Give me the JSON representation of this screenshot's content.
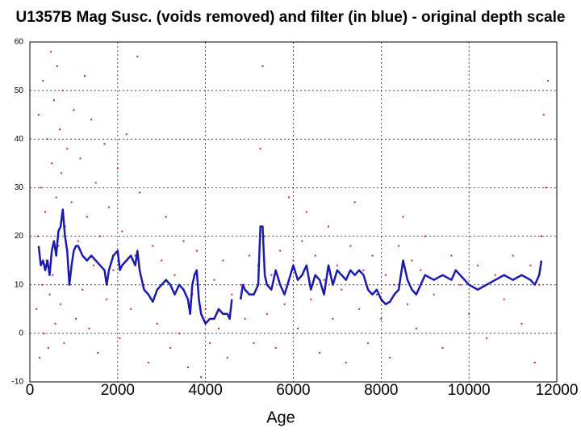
{
  "chart_data": {
    "type": "scatter",
    "title": "U1357B Mag Susc. (voids removed) and filter (in blue) - original depth scale",
    "xlabel": "Age",
    "xlim": [
      0,
      12000
    ],
    "xticks": [
      0,
      2000,
      4000,
      6000,
      8000,
      10000,
      12000
    ],
    "ylim": [
      -10,
      60
    ],
    "yticks": [
      -10,
      0,
      10,
      20,
      30,
      40,
      50,
      60
    ],
    "grid": true,
    "series": [
      {
        "type": "scatter",
        "color": "#cc2222",
        "x": [
          150,
          180,
          200,
          220,
          250,
          280,
          300,
          320,
          350,
          380,
          400,
          420,
          450,
          480,
          500,
          520,
          550,
          580,
          600,
          620,
          650,
          680,
          700,
          720,
          750,
          780,
          800,
          850,
          900,
          950,
          1000,
          1050,
          1100,
          1150,
          1200,
          1250,
          1300,
          1350,
          1400,
          1450,
          1500,
          1550,
          1600,
          1700,
          1750,
          1800,
          1900,
          2000,
          2050,
          2100,
          2200,
          2300,
          2400,
          2450,
          2500,
          2600,
          2700,
          2800,
          2900,
          3000,
          3100,
          3200,
          3300,
          3400,
          3500,
          3600,
          3700,
          3800,
          3900,
          4000,
          4100,
          4200,
          4300,
          4400,
          4500,
          4600,
          4800,
          4900,
          5000,
          5100,
          5200,
          5250,
          5300,
          5350,
          5400,
          5500,
          5600,
          5700,
          5800,
          5900,
          6000,
          6100,
          6200,
          6300,
          6400,
          6500,
          6600,
          6700,
          6800,
          6900,
          7000,
          7100,
          7200,
          7300,
          7400,
          7500,
          7600,
          7700,
          7800,
          7900,
          8000,
          8100,
          8200,
          8300,
          8400,
          8500,
          8600,
          8700,
          8800,
          8900,
          9000,
          9200,
          9400,
          9600,
          9800,
          10000,
          10200,
          10400,
          10600,
          10800,
          11000,
          11200,
          11400,
          11500,
          11600,
          11650,
          11700,
          11750,
          11800
        ],
        "values": [
          5,
          20,
          45,
          -5,
          30,
          10,
          52,
          0,
          25,
          15,
          40,
          -3,
          8,
          58,
          35,
          12,
          48,
          2,
          28,
          55,
          18,
          42,
          6,
          33,
          50,
          -2,
          22,
          38,
          11,
          27,
          46,
          3,
          19,
          36,
          9,
          53,
          24,
          1,
          44,
          14,
          31,
          -4,
          20,
          39,
          7,
          26,
          13,
          34,
          -1,
          21,
          41,
          5,
          16,
          57,
          29,
          10,
          -6,
          18,
          2,
          15,
          24,
          -3,
          12,
          0,
          19,
          -7,
          8,
          17,
          -9,
          5,
          -2,
          11,
          1,
          15,
          -5,
          8,
          10,
          3,
          16,
          -2,
          14,
          38,
          55,
          20,
          4,
          12,
          -3,
          17,
          6,
          28,
          15,
          1,
          19,
          25,
          7,
          16,
          -4,
          11,
          22,
          3,
          14,
          9,
          -6,
          18,
          27,
          5,
          13,
          -2,
          16,
          8,
          3,
          12,
          -5,
          10,
          18,
          24,
          6,
          15,
          1,
          13,
          20,
          8,
          -3,
          16,
          10,
          4,
          14,
          -1,
          12,
          7,
          16,
          2,
          14,
          -6,
          10,
          20,
          45,
          30,
          52
        ]
      },
      {
        "type": "line",
        "color": "#1a1ab0",
        "x": [
          200,
          250,
          300,
          350,
          400,
          450,
          500,
          550,
          600,
          650,
          700,
          750,
          800,
          850,
          900,
          950,
          1000,
          1050,
          1100,
          1200,
          1300,
          1400,
          1500,
          1600,
          1700,
          1750,
          1800,
          1900,
          2000,
          2050,
          2100,
          2200,
          2300,
          2400,
          2450,
          2500,
          2600,
          2700,
          2800,
          2900,
          3000,
          3100,
          3200,
          3300,
          3400,
          3500,
          3600,
          3650,
          3700,
          3750,
          3800,
          3850,
          3900,
          4000,
          4100,
          4200,
          4300,
          4400,
          4500,
          4550,
          4600,
          4700,
          4800,
          4850,
          4900,
          5000,
          5100,
          5200,
          5250,
          5300,
          5350,
          5400,
          5500,
          5600,
          5700,
          5800,
          5900,
          6000,
          6100,
          6200,
          6300,
          6400,
          6500,
          6600,
          6700,
          6800,
          6900,
          7000,
          7100,
          7200,
          7300,
          7400,
          7500,
          7600,
          7700,
          7800,
          7900,
          8000,
          8100,
          8200,
          8300,
          8400,
          8500,
          8600,
          8700,
          8800,
          8900,
          9000,
          9200,
          9400,
          9600,
          9700,
          9800,
          10000,
          10200,
          10400,
          10600,
          10800,
          11000,
          11200,
          11400,
          11500,
          11600,
          11650
        ],
        "values": [
          18,
          14,
          15,
          13,
          15,
          12,
          17,
          19,
          16,
          21,
          22,
          25.5,
          20,
          17,
          10,
          14,
          17,
          18,
          18,
          16,
          15,
          16,
          15,
          14,
          13,
          10,
          13,
          16,
          17,
          13,
          14,
          15,
          16,
          14,
          17,
          13,
          9,
          8,
          6.5,
          9,
          10,
          11,
          10,
          8,
          10,
          9,
          7,
          4,
          10,
          12,
          13,
          7,
          4,
          2,
          3,
          3,
          5,
          4,
          4,
          3,
          7,
          null,
          7,
          10,
          9,
          8,
          8,
          10,
          22,
          22,
          12,
          10,
          9,
          13,
          10,
          8,
          11,
          14,
          11,
          12,
          14,
          9,
          12,
          11,
          8,
          14,
          10,
          13,
          12,
          11,
          13,
          12,
          13,
          12,
          9,
          8,
          9,
          7,
          6,
          6.5,
          8,
          9,
          15,
          11,
          9,
          8,
          10,
          12,
          11,
          12,
          11,
          13,
          12,
          10,
          9,
          10,
          11,
          12,
          11,
          12,
          11,
          10,
          12,
          15
        ]
      }
    ]
  }
}
